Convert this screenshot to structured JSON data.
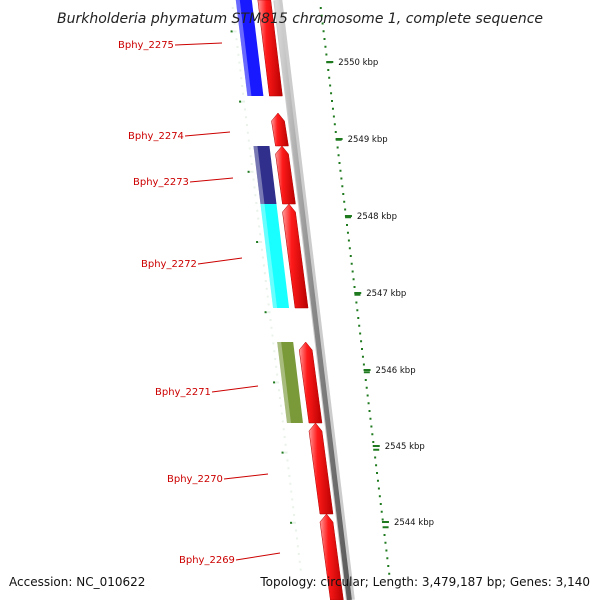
{
  "title": "Burkholderia phymatum STM815 chromosome 1, complete sequence",
  "accession": "Accession: NC_010622",
  "topology": "Topology: circular; Length: 3,479,187 bp; Genes: 3,140",
  "colors": {
    "forward_gene": "#ff0000",
    "backbone": "#888888",
    "tick": "#1f7a1f",
    "label": "#cc0000",
    "cog_blue": "#0000ff",
    "cog_navy": "#1a1a80",
    "cog_cyan": "#00ffff",
    "cog_olive": "#6b8e23"
  },
  "scale_ticks": [
    {
      "label": "2550 kbp"
    },
    {
      "label": "2549 kbp"
    },
    {
      "label": "2548 kbp"
    },
    {
      "label": "2547 kbp"
    },
    {
      "label": "2546 kbp"
    },
    {
      "label": "2545 kbp"
    },
    {
      "label": "2544 kbp"
    }
  ],
  "genes": [
    {
      "id": "Bphy_2275",
      "cog_color": "#0000ff"
    },
    {
      "id": "Bphy_2274",
      "cog_color": ""
    },
    {
      "id": "Bphy_2273",
      "cog_color": "#1a1a80"
    },
    {
      "id": "Bphy_2272",
      "cog_color": "#00ffff"
    },
    {
      "id": "Bphy_2271",
      "cog_color": "#6b8e23"
    },
    {
      "id": "Bphy_2270",
      "cog_color": ""
    },
    {
      "id": "Bphy_2269",
      "cog_color": ""
    }
  ]
}
